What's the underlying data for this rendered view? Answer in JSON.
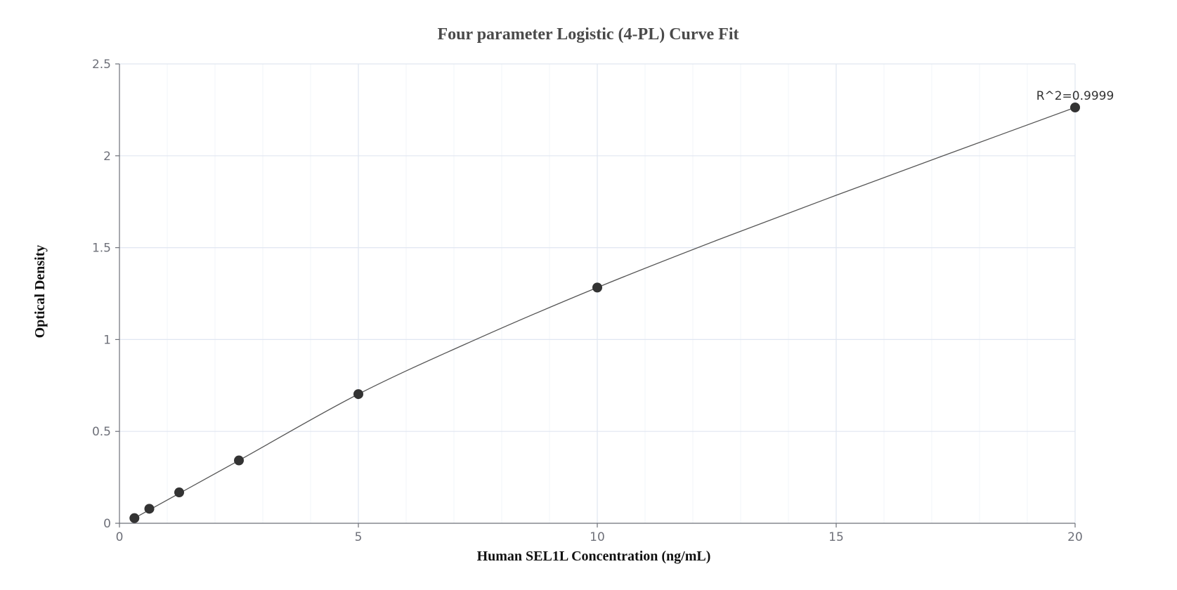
{
  "chart_data": {
    "type": "scatter",
    "title": "Four parameter Logistic (4-PL) Curve Fit",
    "xlabel": "Human SEL1L Concentration (ng/mL)",
    "ylabel": "Optical Density",
    "xlim": [
      0,
      20
    ],
    "ylim": [
      0,
      2.5
    ],
    "x_ticks": [
      0,
      5,
      10,
      15,
      20
    ],
    "x_tick_labels": [
      "0",
      "5",
      "10",
      "15",
      "20"
    ],
    "y_ticks": [
      0,
      0.5,
      1,
      1.5,
      2,
      2.5
    ],
    "y_tick_labels": [
      "0",
      "0.5",
      "1",
      "1.5",
      "2",
      "2.5"
    ],
    "grid": true,
    "series": [
      {
        "type": "scatter",
        "x": [
          0.313,
          0.625,
          1.25,
          2.5,
          5,
          10,
          20
        ],
        "y": [
          0.028,
          0.079,
          0.168,
          0.342,
          0.703,
          1.283,
          2.263
        ]
      },
      {
        "type": "line",
        "x": [
          0.313,
          2.5,
          5,
          7.5,
          10,
          12.5,
          15,
          17.5,
          20
        ],
        "y": [
          0.028,
          0.342,
          0.703,
          1.005,
          1.283,
          1.54,
          1.785,
          2.025,
          2.263
        ]
      }
    ],
    "annotations": [
      {
        "text": "R^2=0.9999",
        "x": 20,
        "y": 2.263
      }
    ],
    "colors": {
      "points": "#333333",
      "curve": "#555555",
      "grid": "#e0e6f1"
    }
  }
}
